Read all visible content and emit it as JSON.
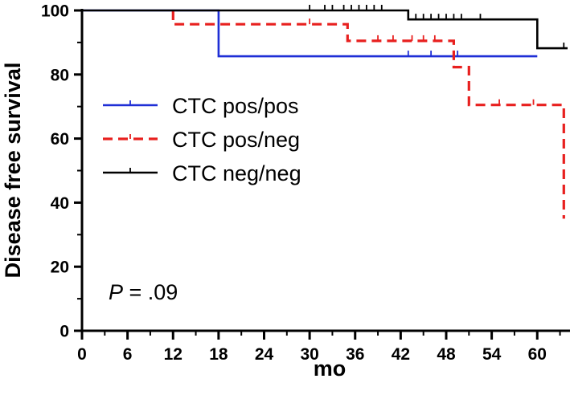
{
  "chart_data": {
    "type": "line",
    "subtype": "kaplan-meier step",
    "title": "",
    "xlabel": "mo",
    "ylabel": "Disease free survival",
    "xlim": [
      0,
      64
    ],
    "ylim": [
      0,
      100
    ],
    "xticks": [
      0,
      6,
      12,
      18,
      24,
      30,
      36,
      42,
      48,
      54,
      60
    ],
    "yticks": [
      0,
      20,
      40,
      60,
      80,
      100
    ],
    "grid": false,
    "legend_position": "upper-left",
    "annotation": {
      "italic": "P",
      "rest": " = .09"
    },
    "series": [
      {
        "name": "CTC pos/pos",
        "color": "#1f2fd6",
        "dash": "solid",
        "steps": [
          [
            0,
            100
          ],
          [
            18,
            100
          ],
          [
            18,
            85.7
          ],
          [
            60,
            85.7
          ]
        ],
        "censors": [
          [
            43,
            85.7
          ],
          [
            46,
            85.7
          ],
          [
            49.5,
            85.7
          ]
        ]
      },
      {
        "name": "CTC pos/neg",
        "color": "#e8201f",
        "dash": "dashed",
        "steps": [
          [
            12,
            100
          ],
          [
            12,
            95.7
          ],
          [
            35,
            95.7
          ],
          [
            35,
            90.5
          ],
          [
            49,
            90.5
          ],
          [
            49,
            82.3
          ],
          [
            51,
            82.3
          ],
          [
            51,
            70.5
          ],
          [
            63.5,
            70.5
          ],
          [
            63.5,
            35
          ]
        ],
        "censors": [
          [
            30,
            95.7
          ],
          [
            39,
            90.5
          ],
          [
            41,
            90.5
          ],
          [
            43.5,
            90.5
          ],
          [
            45,
            90.5
          ],
          [
            46.5,
            90.5
          ],
          [
            55,
            70.5
          ],
          [
            59.5,
            70.5
          ]
        ]
      },
      {
        "name": "CTC neg/neg",
        "color": "#000000",
        "dash": "solid",
        "steps": [
          [
            0,
            100
          ],
          [
            43,
            100
          ],
          [
            43,
            97.2
          ],
          [
            60,
            97.2
          ],
          [
            60,
            88.2
          ],
          [
            64,
            88.2
          ]
        ],
        "censors": [
          [
            30,
            100
          ],
          [
            32,
            100
          ],
          [
            33,
            100
          ],
          [
            34.5,
            100
          ],
          [
            35.5,
            100
          ],
          [
            36.5,
            100
          ],
          [
            37.5,
            100
          ],
          [
            38.5,
            100
          ],
          [
            39.5,
            100
          ],
          [
            44,
            97.2
          ],
          [
            45,
            97.2
          ],
          [
            46,
            97.2
          ],
          [
            47,
            97.2
          ],
          [
            48,
            97.2
          ],
          [
            49,
            97.2
          ],
          [
            50,
            97.2
          ],
          [
            52.5,
            97.2
          ],
          [
            63.5,
            88.2
          ]
        ]
      }
    ]
  }
}
